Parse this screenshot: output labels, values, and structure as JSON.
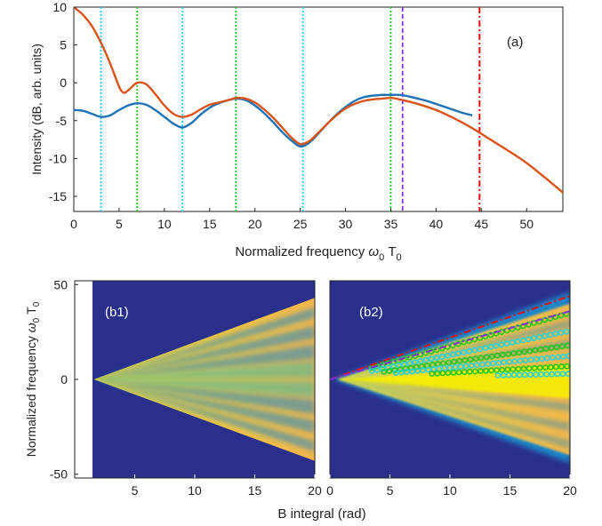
{
  "chart_data": [
    {
      "type": "line",
      "panel_label": "(a)",
      "xlabel_main": "Normalized frequency ",
      "xlabel_omega": "ω",
      "xlabel_omega_sub": "0",
      "xlabel_T": " T",
      "xlabel_T_sub": "0",
      "ylabel": "Intensity (dB, arb. units)",
      "xlim": [
        0,
        54
      ],
      "ylim": [
        -17,
        10
      ],
      "xticks": [
        "0",
        "5",
        "10",
        "15",
        "20",
        "25",
        "30",
        "35",
        "40",
        "45",
        "50"
      ],
      "yticks": [
        "10",
        "5",
        "0",
        "-5",
        "-10",
        "-15"
      ],
      "colors": {
        "blue": "#1f72b8",
        "orange": "#d9541a",
        "cyan": "#22d3e6",
        "green": "#1ec81e",
        "purple": "#8a2be2",
        "red": "#e01010"
      },
      "series": [
        {
          "color": "#1f72b8",
          "x": [
            0,
            1,
            2,
            3,
            4,
            5,
            6,
            7,
            8,
            9,
            10,
            11,
            12,
            13,
            14,
            15,
            16,
            17,
            18,
            19,
            20,
            21,
            22,
            23,
            24,
            25,
            26,
            27,
            28,
            29,
            30,
            31,
            32,
            33,
            34,
            35,
            36,
            37,
            38,
            39,
            40,
            41,
            42,
            43,
            44
          ],
          "y": [
            -3.6,
            -3.7,
            -4.1,
            -4.5,
            -4.3,
            -3.6,
            -3.0,
            -2.7,
            -2.9,
            -3.6,
            -4.5,
            -5.4,
            -5.9,
            -5.3,
            -4.2,
            -3.3,
            -2.7,
            -2.3,
            -2.1,
            -2.3,
            -3.0,
            -4.0,
            -5.2,
            -6.5,
            -7.6,
            -8.4,
            -7.9,
            -6.7,
            -5.4,
            -4.2,
            -3.2,
            -2.4,
            -1.9,
            -1.7,
            -1.6,
            -1.6,
            -1.6,
            -1.8,
            -2.1,
            -2.4,
            -2.8,
            -3.2,
            -3.6,
            -4.0,
            -4.3
          ]
        },
        {
          "color": "#d9541a",
          "x": [
            0,
            1,
            2,
            3,
            4,
            5,
            5.5,
            6,
            7,
            8,
            9,
            10,
            11,
            12,
            13,
            14,
            15,
            16,
            17,
            18,
            19,
            20,
            21,
            22,
            23,
            24,
            25,
            26,
            27,
            28,
            29,
            30,
            31,
            32,
            33,
            34,
            35,
            36,
            38,
            40,
            42,
            44,
            46,
            48,
            50,
            52,
            54
          ],
          "y": [
            10,
            9.0,
            7.5,
            5.3,
            2.6,
            -0.5,
            -1.3,
            -1.0,
            0.0,
            -0.2,
            -1.5,
            -3.0,
            -4.1,
            -4.5,
            -4.2,
            -3.5,
            -2.9,
            -2.6,
            -2.3,
            -2.0,
            -2.1,
            -2.6,
            -3.5,
            -4.6,
            -5.9,
            -7.2,
            -8.1,
            -7.7,
            -6.6,
            -5.4,
            -4.3,
            -3.4,
            -2.8,
            -2.4,
            -2.2,
            -2.1,
            -2.0,
            -2.2,
            -2.8,
            -3.6,
            -4.7,
            -6.0,
            -7.5,
            -9.0,
            -10.6,
            -12.5,
            -14.5
          ]
        }
      ],
      "vlines": [
        {
          "x": 3,
          "color": "#22d3e6",
          "style": "dotted"
        },
        {
          "x": 12,
          "color": "#22d3e6",
          "style": "dotted"
        },
        {
          "x": 25.3,
          "color": "#22d3e6",
          "style": "dotted"
        },
        {
          "x": 7,
          "color": "#1ec81e",
          "style": "dotted"
        },
        {
          "x": 17.9,
          "color": "#1ec81e",
          "style": "dotted"
        },
        {
          "x": 35,
          "color": "#1ec81e",
          "style": "dotted"
        },
        {
          "x": 36.3,
          "color": "#8a2be2",
          "style": "dashed"
        },
        {
          "x": 44.8,
          "color": "#e01010",
          "style": "dashdot"
        }
      ]
    },
    {
      "type": "heatmap",
      "panel_label": "(b1)",
      "ylabel_main": "Normalized frequency ",
      "ylabel_omega": "ω",
      "ylabel_omega_sub": "0",
      "ylabel_T": " T",
      "ylabel_T_sub": "0",
      "xlim": [
        0,
        20
      ],
      "ylim": [
        -52,
        52
      ],
      "xticks": [
        "5",
        "10",
        "15",
        "20"
      ],
      "yticks": [
        "50",
        "0",
        "-50"
      ],
      "background": "#2b2f8c",
      "fan_start_x": 1.6,
      "fan_edge_top": 43,
      "fan_edge_bottom": -43,
      "colors": {
        "yellow": "#f6e73a",
        "orange": "#f2b64a",
        "teal": "#3cb8a5",
        "blue": "#1e86c8"
      }
    },
    {
      "type": "heatmap",
      "panel_label": "(b2)",
      "xlim": [
        0,
        20
      ],
      "ylim": [
        -52,
        52
      ],
      "xticks": [
        "0",
        "5",
        "10",
        "15",
        "20"
      ],
      "xlabel": "B integral (rad)",
      "background": "#2b2f8c",
      "dashed_lines": [
        {
          "end_y": 44,
          "color": "#e01010"
        },
        {
          "end_y": 36,
          "color": "#8a2be2"
        }
      ],
      "marker_series": [
        {
          "color": "#1ec81e",
          "slope": 1.75,
          "x_start": 3.5
        },
        {
          "color": "#22d3e6",
          "slope": 1.28,
          "x_start": 3.5
        },
        {
          "color": "#1ec81e",
          "slope": 0.9,
          "x_start": 4.5
        },
        {
          "color": "#22d3e6",
          "slope": 0.62,
          "x_start": 5.5
        },
        {
          "color": "#1ec81e",
          "slope": 0.35,
          "x_start": 8.5
        },
        {
          "color": "#22d3e6",
          "slope": 0.15,
          "x_start": 14
        }
      ]
    }
  ]
}
